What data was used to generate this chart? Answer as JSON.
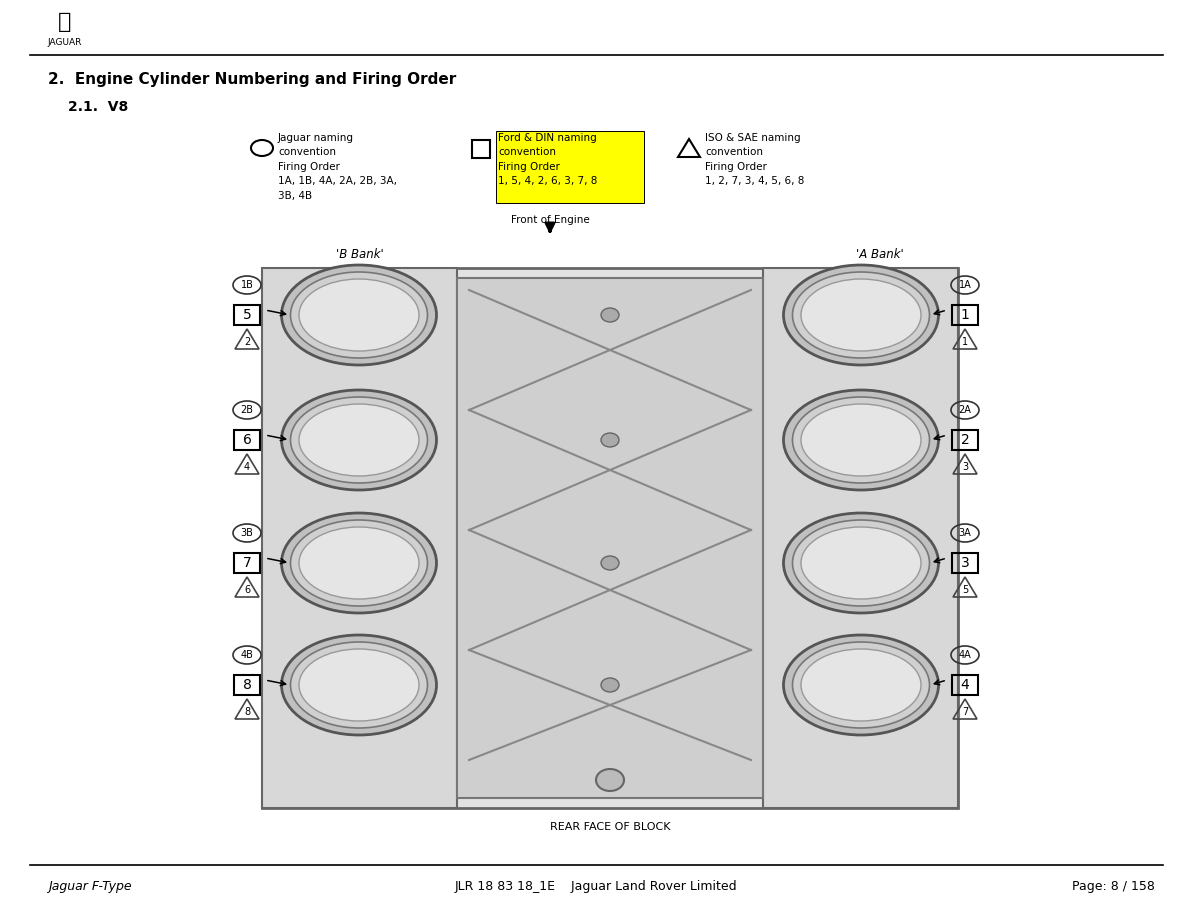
{
  "title": "2.  Engine Cylinder Numbering and Firing Order",
  "subtitle": "2.1.  V8",
  "footer_left": "Jaguar F-Type",
  "footer_center": "JLR 18 83 18_1E    Jaguar Land Rover Limited",
  "footer_right": "Page: 8 / 158",
  "rear_label": "REAR FACE OF BLOCK",
  "jaguar_naming": "Jaguar naming\nconvention\nFiring Order\n1A, 1B, 4A, 2A, 2B, 3A,\n3B, 4B",
  "ford_naming": "Ford & DIN naming\nconvention\nFiring Order\n1, 5, 4, 2, 6, 3, 7, 8",
  "iso_naming": "ISO & SAE naming\nconvention\nFiring Order\n1, 2, 7, 3, 4, 5, 6, 8",
  "front_engine": "Front of Engine",
  "b_bank": "'B Bank'",
  "a_bank": "'A Bank'",
  "b_jag_labels": [
    "1B",
    "2B",
    "3B",
    "4B"
  ],
  "b_ford_labels": [
    "5",
    "6",
    "7",
    "8"
  ],
  "b_iso_labels": [
    "2",
    "4",
    "6",
    "8"
  ],
  "a_jag_labels": [
    "1A",
    "2A",
    "3A",
    "4A"
  ],
  "a_ford_labels": [
    "1",
    "2",
    "3",
    "4"
  ],
  "a_iso_labels": [
    "1",
    "3",
    "5",
    "7"
  ],
  "bg_color": "#ffffff",
  "yellow": "#ffff00",
  "engine_gray": "#e8e8e8",
  "engine_gray2": "#d0d0d0",
  "center_gray": "#c8c8c8",
  "cyl_outer": "#d8d8d8",
  "cyl_inner": "#eeeeee"
}
